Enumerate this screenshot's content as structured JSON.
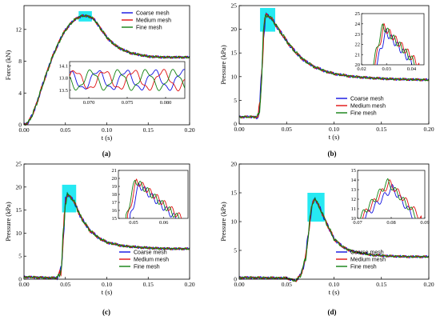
{
  "series_colors": {
    "Coarse mesh": "#1010e0",
    "Medium mesh": "#e01010",
    "Fine mesh": "#108010"
  },
  "highlight_color": "#00e5f0",
  "chart_data": [
    {
      "id": "a",
      "type": "line",
      "panel_label": "(a)",
      "xlabel": "t (s)",
      "ylabel": "Force (kN)",
      "xlim": [
        0,
        0.2
      ],
      "ylim": [
        0,
        15
      ],
      "xticks": [
        0.0,
        0.05,
        0.1,
        0.15,
        0.2
      ],
      "xtick_labels": [
        "0.00",
        "0.05",
        "0.10",
        "0.15",
        "0.20"
      ],
      "yticks": [
        0,
        4,
        8,
        12
      ],
      "ytick_labels": [
        "0",
        "4",
        "8",
        "12"
      ],
      "legend": [
        "Coarse mesh",
        "Medium mesh",
        "Fine mesh"
      ],
      "legend_position": "top-right",
      "x": [
        0,
        0.005,
        0.01,
        0.015,
        0.02,
        0.025,
        0.03,
        0.035,
        0.04,
        0.045,
        0.05,
        0.055,
        0.06,
        0.065,
        0.07,
        0.075,
        0.08,
        0.085,
        0.09,
        0.1,
        0.11,
        0.12,
        0.13,
        0.14,
        0.15,
        0.16,
        0.17,
        0.18,
        0.19,
        0.2
      ],
      "series": [
        {
          "name": "Coarse mesh",
          "values": [
            0,
            0.3,
            1.2,
            2.6,
            4.2,
            5.8,
            7.3,
            8.7,
            9.9,
            11.0,
            11.9,
            12.6,
            13.1,
            13.5,
            13.7,
            13.7,
            13.6,
            13.2,
            12.5,
            11.0,
            10.0,
            9.4,
            9.0,
            8.8,
            8.6,
            8.55,
            8.5,
            8.5,
            8.5,
            8.5
          ]
        }
      ],
      "highlight_box": {
        "x": [
          0.066,
          0.082
        ],
        "y": [
          13.0,
          14.3
        ]
      },
      "inset": {
        "xlim": [
          0.0675,
          0.0825
        ],
        "ylim": [
          13.3,
          14.2
        ],
        "xticks": [
          0.07,
          0.075,
          0.08
        ],
        "xtick_labels": [
          "0.070",
          "0.075",
          "0.080"
        ],
        "yticks": [
          13.5,
          13.8,
          14.1
        ],
        "ytick_labels": [
          "13.5",
          "13.8",
          "14.1"
        ],
        "oscillation": {
          "base": 13.75,
          "amplitude": 0.22
        }
      }
    },
    {
      "id": "b",
      "type": "line",
      "panel_label": "(b)",
      "xlabel": "t (s)",
      "ylabel": "Pressure (kPa)",
      "xlim": [
        0,
        0.2
      ],
      "ylim": [
        0,
        25
      ],
      "xticks": [
        0.0,
        0.05,
        0.1,
        0.15,
        0.2
      ],
      "xtick_labels": [
        "0.00",
        "0.05",
        "0.10",
        "0.15",
        "0.20"
      ],
      "yticks": [
        0,
        5,
        10,
        15,
        20,
        25
      ],
      "ytick_labels": [
        "0",
        "5",
        "10",
        "15",
        "20",
        "25"
      ],
      "legend": [
        "Coarse mesh",
        "Medium mesh",
        "Fine mesh"
      ],
      "legend_position": "bottom-right",
      "x": [
        0,
        0.01,
        0.02,
        0.022,
        0.024,
        0.026,
        0.028,
        0.03,
        0.035,
        0.04,
        0.05,
        0.06,
        0.07,
        0.08,
        0.09,
        0.1,
        0.12,
        0.14,
        0.16,
        0.18,
        0.2
      ],
      "series": [
        {
          "name": "Coarse mesh",
          "values": [
            1.5,
            1.5,
            1.5,
            4.0,
            12.0,
            20.0,
            23.0,
            23.0,
            22.0,
            20.5,
            17.5,
            15.0,
            13.2,
            12.0,
            11.2,
            10.6,
            10.0,
            9.7,
            9.5,
            9.4,
            9.3
          ]
        }
      ],
      "highlight_box": {
        "x": [
          0.022,
          0.038
        ],
        "y": [
          19.5,
          24.5
        ]
      },
      "inset": {
        "xlim": [
          0.02,
          0.045
        ],
        "ylim": [
          20,
          25
        ],
        "xticks": [
          0.02,
          0.03,
          0.04
        ],
        "xtick_labels": [
          "0.02",
          "0.03",
          "0.04"
        ],
        "yticks": [
          20,
          21,
          22,
          23,
          24,
          25
        ],
        "ytick_labels": [
          "20",
          "21",
          "22",
          "23",
          "24",
          "25"
        ],
        "spike": {
          "start": 0.025,
          "peak_x": 0.029,
          "peak": 23.8,
          "end": 0.043
        }
      }
    },
    {
      "id": "c",
      "type": "line",
      "panel_label": "(c)",
      "xlabel": "t (s)",
      "ylabel": "Pressure (kPa)",
      "xlim": [
        0,
        0.2
      ],
      "ylim": [
        0,
        25
      ],
      "xticks": [
        0.0,
        0.05,
        0.1,
        0.15,
        0.2
      ],
      "xtick_labels": [
        "0.00",
        "0.05",
        "0.10",
        "0.15",
        "0.20"
      ],
      "yticks": [
        0,
        5,
        10,
        15,
        20,
        25
      ],
      "ytick_labels": [
        "0",
        "5",
        "10",
        "15",
        "20",
        "25"
      ],
      "legend": [
        "Coarse mesh",
        "Medium mesh",
        "Fine mesh"
      ],
      "legend_position": "bottom-right",
      "x": [
        0,
        0.03,
        0.04,
        0.045,
        0.047,
        0.05,
        0.052,
        0.055,
        0.06,
        0.065,
        0.07,
        0.08,
        0.09,
        0.1,
        0.12,
        0.14,
        0.16,
        0.18,
        0.2
      ],
      "series": [
        {
          "name": "Coarse mesh",
          "values": [
            0.5,
            0.3,
            0.3,
            2.0,
            8.0,
            16.5,
            18.5,
            18.0,
            17.0,
            15.0,
            13.0,
            10.5,
            9.0,
            8.0,
            7.2,
            6.9,
            6.7,
            6.6,
            6.6
          ]
        }
      ],
      "highlight_box": {
        "x": [
          0.046,
          0.063
        ],
        "y": [
          14.5,
          20.5
        ]
      },
      "inset": {
        "xlim": [
          0.045,
          0.068
        ],
        "ylim": [
          15,
          21
        ],
        "xticks": [
          0.05,
          0.06
        ],
        "xtick_labels": [
          "0.05",
          "0.06"
        ],
        "yticks": [
          15,
          16,
          17,
          18,
          19,
          20,
          21
        ],
        "ytick_labels": [
          "15",
          "16",
          "17",
          "18",
          "19",
          "20",
          "21"
        ],
        "spike": {
          "start": 0.048,
          "peak_x": 0.051,
          "peak": 19.8,
          "end": 0.066
        }
      }
    },
    {
      "id": "d",
      "type": "line",
      "panel_label": "(d)",
      "xlabel": "t (s)",
      "ylabel": "Pressure (kPa)",
      "xlim": [
        0,
        0.2
      ],
      "ylim": [
        0,
        20
      ],
      "xticks": [
        0.0,
        0.05,
        0.1,
        0.15,
        0.2
      ],
      "xtick_labels": [
        "0.00",
        "0.05",
        "0.10",
        "0.15",
        "0.20"
      ],
      "yticks": [
        0,
        5,
        10,
        15,
        20
      ],
      "ytick_labels": [
        "0",
        "5",
        "10",
        "15",
        "20"
      ],
      "legend": [
        "Coarse mesh",
        "Medium mesh",
        "Fine mesh"
      ],
      "legend_position": "bottom-right",
      "x": [
        0,
        0.05,
        0.06,
        0.065,
        0.07,
        0.073,
        0.076,
        0.078,
        0.08,
        0.083,
        0.086,
        0.09,
        0.1,
        0.11,
        0.12,
        0.14,
        0.16,
        0.18,
        0.2
      ],
      "series": [
        {
          "name": "Coarse mesh",
          "values": [
            0.3,
            0.2,
            -0.3,
            0.8,
            3.5,
            8.0,
            12.0,
            13.5,
            14.0,
            13.0,
            12.0,
            10.5,
            7.0,
            5.5,
            4.8,
            4.2,
            4.0,
            3.9,
            3.9
          ]
        }
      ],
      "highlight_box": {
        "x": [
          0.072,
          0.09
        ],
        "y": [
          10.0,
          15.0
        ]
      },
      "inset": {
        "xlim": [
          0.07,
          0.09
        ],
        "ylim": [
          10,
          15
        ],
        "xticks": [
          0.07,
          0.08,
          0.09
        ],
        "xtick_labels": [
          "0.07",
          "0.08",
          "0.09"
        ],
        "yticks": [
          10,
          11,
          12,
          13,
          14,
          15
        ],
        "ytick_labels": [
          "10",
          "11",
          "12",
          "13",
          "14",
          "15"
        ],
        "spike": {
          "start": 0.071,
          "peak_x": 0.0795,
          "peak": 13.8,
          "end": 0.089
        }
      }
    }
  ]
}
